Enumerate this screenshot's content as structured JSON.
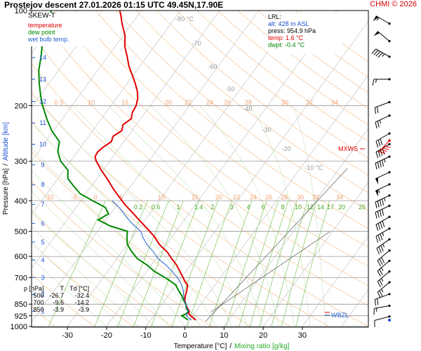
{
  "header": {
    "title": "Prostejov   descent   27.01.2026 01:15 UTC  49.45N,17.90E",
    "credit": "CHMI © 2026"
  },
  "legend": {
    "title": "SKEW-T",
    "items": [
      {
        "label": "temperature",
        "color": "#e00000"
      },
      {
        "label": "dew point",
        "color": "#008800"
      },
      {
        "label": "wet bulb temp.",
        "color": "#2060d0"
      }
    ]
  },
  "lrl": {
    "title": "LRL:",
    "alt": "alt: 428 m ASL",
    "press": "press: 954.9 hPa",
    "temp": "temp: 1.6 °C",
    "dwpt": "dwpt: -0.4 °C"
  },
  "table": {
    "headers": [
      "p [hPa]",
      "T",
      "Td [°C]"
    ],
    "rows": [
      [
        "500",
        "-26.7",
        "-32.4"
      ],
      [
        "700",
        "-9.6",
        "-14.2"
      ],
      [
        "850",
        "-3.9",
        "-3.9"
      ]
    ]
  },
  "markers": {
    "mxws": "MXWS",
    "wbzl": "WBZL"
  },
  "chart_data": {
    "type": "line",
    "title": "SKEW-T",
    "xlabel": "Temperature [°C]",
    "xlabel2": "Mixing ratio [g/kg]",
    "xlabel_sep": "/",
    "ylabel": "Pressure [hPa]",
    "ylabel2": "Altitude [km]",
    "ylabel_sep": "/",
    "xlim": [
      -40,
      40
    ],
    "ylim": [
      1000,
      100
    ],
    "x_ticks": [
      -30,
      -20,
      -10,
      0,
      10,
      20,
      30
    ],
    "pressure_ticks": [
      100,
      200,
      300,
      400,
      500,
      600,
      700,
      850,
      925,
      1000
    ],
    "altitude_ticks": [
      {
        "km": "1",
        "p": 895
      },
      {
        "km": "2",
        "p": 792
      },
      {
        "km": "3",
        "p": 700
      },
      {
        "km": "4",
        "p": 616
      },
      {
        "km": "5",
        "p": 541
      },
      {
        "km": "6",
        "p": 472
      },
      {
        "km": "7",
        "p": 411
      },
      {
        "km": "8",
        "p": 356
      },
      {
        "km": "9",
        "p": 308
      },
      {
        "km": "10",
        "p": 265
      },
      {
        "km": "11",
        "p": 227
      },
      {
        "km": "12",
        "p": 194
      },
      {
        "km": "13",
        "p": 165
      },
      {
        "km": "14",
        "p": 141
      },
      {
        "km": "15",
        "p": 120
      }
    ],
    "isotherm_labels": [
      {
        "t": "-80 °C",
        "p": 110
      },
      {
        "t": "-70",
        "p": 130
      },
      {
        "t": "-60",
        "p": 153
      },
      {
        "t": "-50",
        "p": 180
      },
      {
        "t": "-40",
        "p": 212
      },
      {
        "t": "-30",
        "p": 250
      },
      {
        "t": "-20",
        "p": 295
      },
      {
        "t": "-10 °C",
        "p": 348
      }
    ],
    "dry_adiabat_labels_top": [
      "0",
      "5",
      "10",
      "15",
      "20",
      "22",
      "24",
      "26",
      "28",
      "30",
      "32",
      "34"
    ],
    "dry_adiabat_labels_mid": [
      "-10",
      "-5",
      "0",
      "5",
      "10",
      "15",
      "20",
      "22",
      "24",
      "26",
      "28",
      "30",
      "32",
      "34"
    ],
    "mixing_ratio_labels": [
      "0.2",
      "0.6",
      "1",
      "1.4",
      "2",
      "3",
      "4",
      "6",
      "8",
      "10",
      "12",
      "14",
      "17",
      "20",
      "25"
    ],
    "series": [
      {
        "name": "temperature",
        "color": "#e00000",
        "points": [
          [
            955,
            1.6
          ],
          [
            935,
            0.2
          ],
          [
            925,
            -0.5
          ],
          [
            910,
            -1.5
          ],
          [
            895,
            -1.7
          ],
          [
            880,
            -2.5
          ],
          [
            865,
            -3.3
          ],
          [
            850,
            -3.9
          ],
          [
            830,
            -4.8
          ],
          [
            800,
            -5.6
          ],
          [
            770,
            -6.2
          ],
          [
            740,
            -7.0
          ],
          [
            720,
            -8.4
          ],
          [
            700,
            -9.6
          ],
          [
            670,
            -11.5
          ],
          [
            640,
            -13.5
          ],
          [
            610,
            -16.0
          ],
          [
            580,
            -18.5
          ],
          [
            550,
            -21.8
          ],
          [
            520,
            -24.5
          ],
          [
            500,
            -26.7
          ],
          [
            470,
            -30.3
          ],
          [
            440,
            -34.1
          ],
          [
            410,
            -38.2
          ],
          [
            390,
            -40.8
          ],
          [
            370,
            -43.5
          ],
          [
            340,
            -47.5
          ],
          [
            320,
            -50.5
          ],
          [
            300,
            -53.4
          ],
          [
            290,
            -54.6
          ],
          [
            280,
            -54.8
          ],
          [
            270,
            -54.2
          ],
          [
            260,
            -53.2
          ],
          [
            250,
            -53.8
          ],
          [
            240,
            -52.6
          ],
          [
            230,
            -53.4
          ],
          [
            220,
            -52.4
          ],
          [
            210,
            -53.3
          ],
          [
            200,
            -53.6
          ],
          [
            190,
            -54.5
          ],
          [
            180,
            -56.0
          ],
          [
            170,
            -58.0
          ],
          [
            160,
            -60.3
          ],
          [
            150,
            -62.8
          ],
          [
            140,
            -65.0
          ],
          [
            130,
            -67.5
          ],
          [
            120,
            -69.5
          ],
          [
            110,
            -72.5
          ],
          [
            103,
            -74.5
          ],
          [
            100,
            -75.5
          ]
        ]
      },
      {
        "name": "dew point",
        "color": "#008800",
        "points": [
          [
            955,
            -0.4
          ],
          [
            940,
            -1.5
          ],
          [
            925,
            -2.8
          ],
          [
            910,
            -2.0
          ],
          [
            895,
            -1.9
          ],
          [
            880,
            -2.8
          ],
          [
            865,
            -3.4
          ],
          [
            850,
            -3.9
          ],
          [
            830,
            -5.0
          ],
          [
            800,
            -6.5
          ],
          [
            770,
            -8.3
          ],
          [
            740,
            -10.0
          ],
          [
            720,
            -12.0
          ],
          [
            700,
            -14.2
          ],
          [
            670,
            -18.0
          ],
          [
            640,
            -21.0
          ],
          [
            610,
            -24.8
          ],
          [
            580,
            -27.5
          ],
          [
            550,
            -30.0
          ],
          [
            520,
            -31.5
          ],
          [
            500,
            -32.4
          ],
          [
            480,
            -38.0
          ],
          [
            460,
            -42.0
          ],
          [
            440,
            -40.5
          ],
          [
            420,
            -42.5
          ],
          [
            400,
            -47.0
          ],
          [
            380,
            -51.5
          ],
          [
            360,
            -54.5
          ],
          [
            340,
            -57.5
          ],
          [
            320,
            -59.0
          ],
          [
            300,
            -62.5
          ],
          [
            280,
            -65.0
          ],
          [
            260,
            -66.5
          ],
          [
            240,
            -70.5
          ],
          [
            220,
            -74.0
          ],
          [
            200,
            -77.5
          ],
          [
            185,
            -80.0
          ],
          [
            170,
            -82.5
          ],
          [
            155,
            -85.0
          ],
          [
            140,
            -87.0
          ],
          [
            125,
            -89.5
          ],
          [
            110,
            -91.5
          ],
          [
            100,
            -93.0
          ]
        ]
      },
      {
        "name": "wet bulb temp.",
        "color": "#2060d0",
        "points": [
          [
            955,
            0.5
          ],
          [
            935,
            -1.0
          ],
          [
            925,
            -1.6
          ],
          [
            910,
            -1.8
          ],
          [
            895,
            -1.8
          ],
          [
            880,
            -2.6
          ],
          [
            865,
            -3.4
          ],
          [
            850,
            -3.9
          ],
          [
            830,
            -4.9
          ],
          [
            800,
            -6.0
          ],
          [
            770,
            -7.1
          ],
          [
            740,
            -8.5
          ],
          [
            700,
            -11.0
          ],
          [
            670,
            -13.5
          ],
          [
            640,
            -16.2
          ],
          [
            610,
            -19.5
          ],
          [
            580,
            -22.0
          ],
          [
            550,
            -25.0
          ],
          [
            520,
            -27.5
          ],
          [
            500,
            -29.0
          ],
          [
            470,
            -33.0
          ],
          [
            440,
            -36.5
          ],
          [
            420,
            -39.0
          ],
          [
            400,
            -42.0
          ]
        ]
      }
    ],
    "wind_barbs": [
      {
        "p": 110,
        "dir": 300,
        "kt": 55
      },
      {
        "p": 125,
        "dir": 310,
        "kt": 50
      },
      {
        "p": 140,
        "dir": 300,
        "kt": 45
      },
      {
        "p": 165,
        "dir": 270,
        "kt": 15
      },
      {
        "p": 195,
        "dir": 250,
        "kt": 20
      },
      {
        "p": 215,
        "dir": 245,
        "kt": 25
      },
      {
        "p": 245,
        "dir": 240,
        "kt": 30
      },
      {
        "p": 265,
        "dir": 240,
        "kt": 40
      },
      {
        "p": 290,
        "dir": 245,
        "kt": 45
      },
      {
        "p": 325,
        "dir": 245,
        "kt": 50
      },
      {
        "p": 355,
        "dir": 245,
        "kt": 55
      },
      {
        "p": 385,
        "dir": 245,
        "kt": 45
      },
      {
        "p": 415,
        "dir": 245,
        "kt": 40
      },
      {
        "p": 450,
        "dir": 240,
        "kt": 40
      },
      {
        "p": 490,
        "dir": 240,
        "kt": 35
      },
      {
        "p": 530,
        "dir": 235,
        "kt": 35
      },
      {
        "p": 575,
        "dir": 230,
        "kt": 30
      },
      {
        "p": 620,
        "dir": 230,
        "kt": 25
      },
      {
        "p": 670,
        "dir": 230,
        "kt": 25
      },
      {
        "p": 725,
        "dir": 230,
        "kt": 25
      },
      {
        "p": 790,
        "dir": 250,
        "kt": 20
      },
      {
        "p": 860,
        "dir": 260,
        "kt": 15
      },
      {
        "p": 930,
        "dir": 255,
        "kt": 10
      }
    ],
    "mxws_p": 258,
    "wbzl_p": 905
  }
}
